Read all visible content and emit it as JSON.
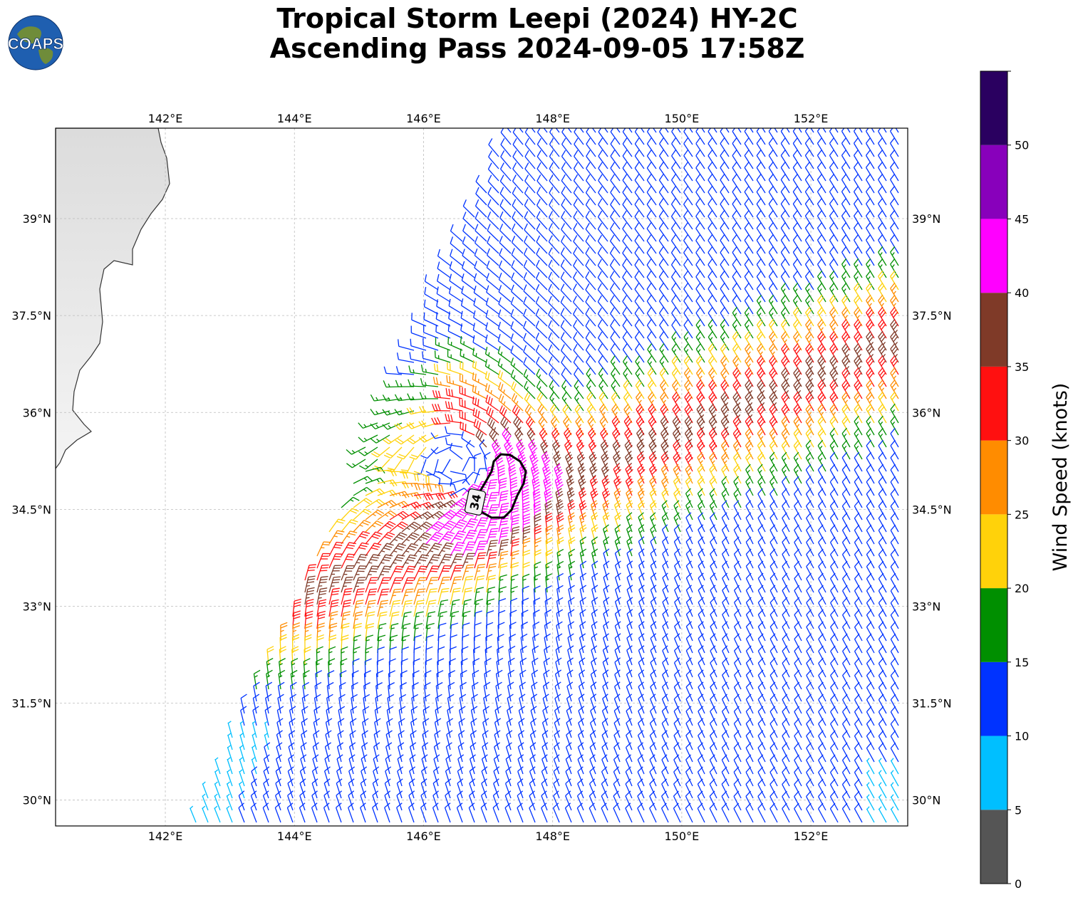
{
  "title": {
    "line1": "Tropical Storm Leepi (2024) HY-2C",
    "line2": "Ascending Pass 2024-09-05 17:58Z"
  },
  "logo": {
    "text": "COAPS",
    "icon": "earth-globe-icon"
  },
  "map": {
    "lon_range": [
      140.3,
      153.5
    ],
    "lat_range": [
      29.6,
      40.4
    ],
    "lon_ticks": [
      "142°E",
      "144°E",
      "146°E",
      "148°E",
      "150°E",
      "152°E"
    ],
    "lon_tick_values": [
      142,
      144,
      146,
      148,
      150,
      152
    ],
    "lat_ticks": [
      "30°N",
      "31.5°N",
      "33°N",
      "34.5°N",
      "36°N",
      "37.5°N",
      "39°N"
    ],
    "lat_tick_values": [
      30,
      31.5,
      33,
      34.5,
      36,
      37.5,
      39
    ],
    "storm_center": {
      "lon": 146.5,
      "lat": 35.2
    },
    "contour_label": "34",
    "grid": true
  },
  "colorbar": {
    "label": "Wind Speed (knots)",
    "ticks": [
      "0",
      "5",
      "10",
      "15",
      "20",
      "25",
      "30",
      "35",
      "40",
      "45",
      "50"
    ],
    "bins": [
      {
        "min": 0,
        "max": 5,
        "color": "#555555"
      },
      {
        "min": 5,
        "max": 10,
        "color": "#00bfff"
      },
      {
        "min": 10,
        "max": 15,
        "color": "#0033ff"
      },
      {
        "min": 15,
        "max": 20,
        "color": "#008f00"
      },
      {
        "min": 20,
        "max": 25,
        "color": "#ffd20a"
      },
      {
        "min": 25,
        "max": 30,
        "color": "#ff8c00"
      },
      {
        "min": 30,
        "max": 35,
        "color": "#ff1010"
      },
      {
        "min": 35,
        "max": 40,
        "color": "#7f3a28"
      },
      {
        "min": 40,
        "max": 45,
        "color": "#ff00ff"
      },
      {
        "min": 45,
        "max": 50,
        "color": "#8800bb"
      },
      {
        "min": 50,
        "max": 55,
        "color": "#2a0060"
      }
    ]
  }
}
